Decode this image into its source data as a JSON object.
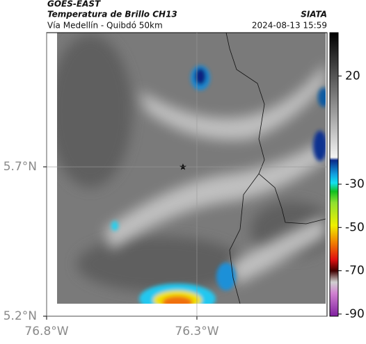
{
  "header": {
    "source": "GOES-EAST",
    "title": "Temperatura de Brillo CH13",
    "subtitle": "Vía Medellín - Quibdó 50km",
    "agency": "SIATA",
    "datetime": "2024-08-13 15:59"
  },
  "map": {
    "lonlim": [
      -76.8,
      -75.867
    ],
    "latlim": [
      5.2,
      6.149
    ],
    "lonticks": [
      {
        "value": -76.8,
        "label": "76.8°W"
      },
      {
        "value": -76.3,
        "label": "76.3°W"
      }
    ],
    "latticks": [
      {
        "value": 5.7,
        "label": "5.7°N"
      },
      {
        "value": 5.2,
        "label": "5.2°N"
      }
    ]
  },
  "colorbar": {
    "lim": [
      -91,
      40
    ],
    "ticks": [
      20,
      -30,
      -50,
      -70,
      -90
    ]
  }
}
